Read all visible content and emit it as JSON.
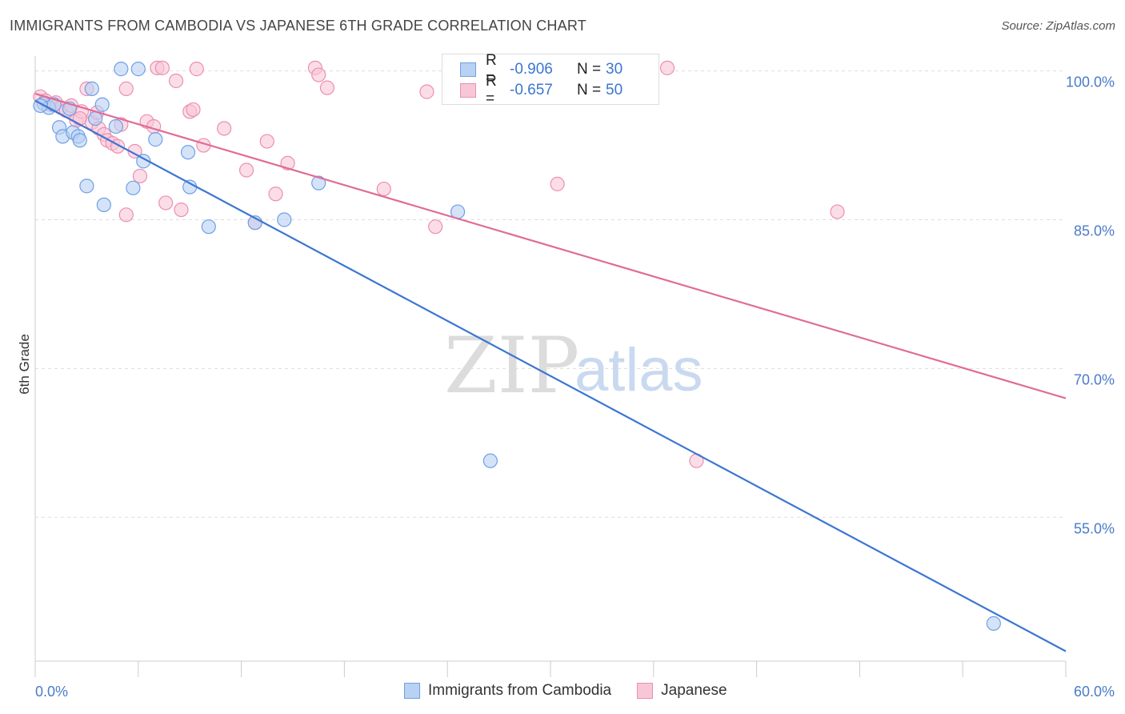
{
  "header": {
    "title": "IMMIGRANTS FROM CAMBODIA VS JAPANESE 6TH GRADE CORRELATION CHART",
    "source": "Source: ZipAtlas.com"
  },
  "watermark": {
    "zip": "ZIP",
    "atlas": "atlas"
  },
  "legend": {
    "rows": [
      {
        "r_label": "R =",
        "r_value": "-0.906",
        "n_label": "N =",
        "n_value": "30",
        "color": "#6fa0e6",
        "fill": "#b9d1f3"
      },
      {
        "r_label": "R =",
        "r_value": "-0.657",
        "n_label": "N =",
        "n_value": "50",
        "color": "#ec8fb0",
        "fill": "#f8c7d7"
      }
    ]
  },
  "bottom_legend": {
    "items": [
      {
        "label": "Immigrants from Cambodia",
        "color": "#6fa0e6",
        "fill": "#b9d1f3"
      },
      {
        "label": "Japanese",
        "color": "#ec8fb0",
        "fill": "#f8c7d7"
      }
    ]
  },
  "chart_data": {
    "type": "scatter",
    "title": "IMMIGRANTS FROM CAMBODIA VS JAPANESE 6TH GRADE CORRELATION CHART",
    "xlabel": "",
    "ylabel": "6th Grade",
    "xlim": [
      0,
      60
    ],
    "ylim": [
      40.5,
      101.5
    ],
    "x_tick_labels": [
      "0.0%",
      "60.0%"
    ],
    "y_ticks": [
      100,
      85,
      70,
      55
    ],
    "y_tick_labels": [
      "100.0%",
      "85.0%",
      "70.0%",
      "55.0%"
    ],
    "grid": true,
    "series": [
      {
        "name": "Immigrants from Cambodia",
        "color": "#3b76d2",
        "point_fill": "#b9d1f3",
        "point_stroke": "#6fa0e6",
        "points": [
          [
            0.5,
            96.7
          ],
          [
            0.8,
            96.3
          ],
          [
            1.1,
            96.6
          ],
          [
            1.4,
            94.3
          ],
          [
            1.6,
            93.4
          ],
          [
            2.0,
            96.2
          ],
          [
            2.2,
            93.8
          ],
          [
            2.5,
            93.4
          ],
          [
            2.6,
            93.0
          ],
          [
            3.0,
            88.4
          ],
          [
            3.3,
            98.2
          ],
          [
            3.5,
            95.2
          ],
          [
            3.9,
            96.6
          ],
          [
            4.0,
            86.5
          ],
          [
            4.7,
            94.4
          ],
          [
            5.0,
            100.2
          ],
          [
            5.7,
            88.2
          ],
          [
            6.0,
            100.2
          ],
          [
            6.3,
            90.9
          ],
          [
            7.0,
            93.1
          ],
          [
            8.9,
            91.8
          ],
          [
            9.0,
            88.3
          ],
          [
            10.1,
            84.3
          ],
          [
            12.8,
            84.7
          ],
          [
            14.5,
            85.0
          ],
          [
            16.5,
            88.7
          ],
          [
            24.6,
            85.8
          ],
          [
            26.5,
            60.7
          ],
          [
            55.8,
            44.3
          ],
          [
            0.3,
            96.5
          ]
        ],
        "trend": {
          "x": [
            0,
            60
          ],
          "y": [
            97.0,
            41.5
          ]
        }
      },
      {
        "name": "Japanese",
        "color": "#e06c97",
        "point_fill": "#f8c7d7",
        "point_stroke": "#ec8fb0",
        "points": [
          [
            0.3,
            97.4
          ],
          [
            0.6,
            97.0
          ],
          [
            0.9,
            96.6
          ],
          [
            1.2,
            96.8
          ],
          [
            1.5,
            96.3
          ],
          [
            1.8,
            96.0
          ],
          [
            2.1,
            96.5
          ],
          [
            2.4,
            95.0
          ],
          [
            2.7,
            95.9
          ],
          [
            2.6,
            95.2
          ],
          [
            3.0,
            98.2
          ],
          [
            3.3,
            94.8
          ],
          [
            3.6,
            95.8
          ],
          [
            3.7,
            94.2
          ],
          [
            4.0,
            93.6
          ],
          [
            4.2,
            93.0
          ],
          [
            4.5,
            92.7
          ],
          [
            4.8,
            92.4
          ],
          [
            5.0,
            94.6
          ],
          [
            5.3,
            98.2
          ],
          [
            5.3,
            85.5
          ],
          [
            5.8,
            91.9
          ],
          [
            6.1,
            89.4
          ],
          [
            6.5,
            94.9
          ],
          [
            6.9,
            94.4
          ],
          [
            7.1,
            100.3
          ],
          [
            7.4,
            100.3
          ],
          [
            7.6,
            86.7
          ],
          [
            8.2,
            99.0
          ],
          [
            8.5,
            86.0
          ],
          [
            9.0,
            95.9
          ],
          [
            9.2,
            96.1
          ],
          [
            9.4,
            100.2
          ],
          [
            9.8,
            92.5
          ],
          [
            11.0,
            94.2
          ],
          [
            12.3,
            90.0
          ],
          [
            12.8,
            84.7
          ],
          [
            13.5,
            92.9
          ],
          [
            14.0,
            87.6
          ],
          [
            14.7,
            90.7
          ],
          [
            16.3,
            100.3
          ],
          [
            16.5,
            99.6
          ],
          [
            17.0,
            98.3
          ],
          [
            20.3,
            88.1
          ],
          [
            22.8,
            97.9
          ],
          [
            23.3,
            84.3
          ],
          [
            30.4,
            88.6
          ],
          [
            36.8,
            100.3
          ],
          [
            38.5,
            60.7
          ],
          [
            46.7,
            85.8
          ]
        ],
        "trend": {
          "x": [
            0,
            60
          ],
          "y": [
            97.7,
            67.0
          ]
        }
      }
    ]
  }
}
